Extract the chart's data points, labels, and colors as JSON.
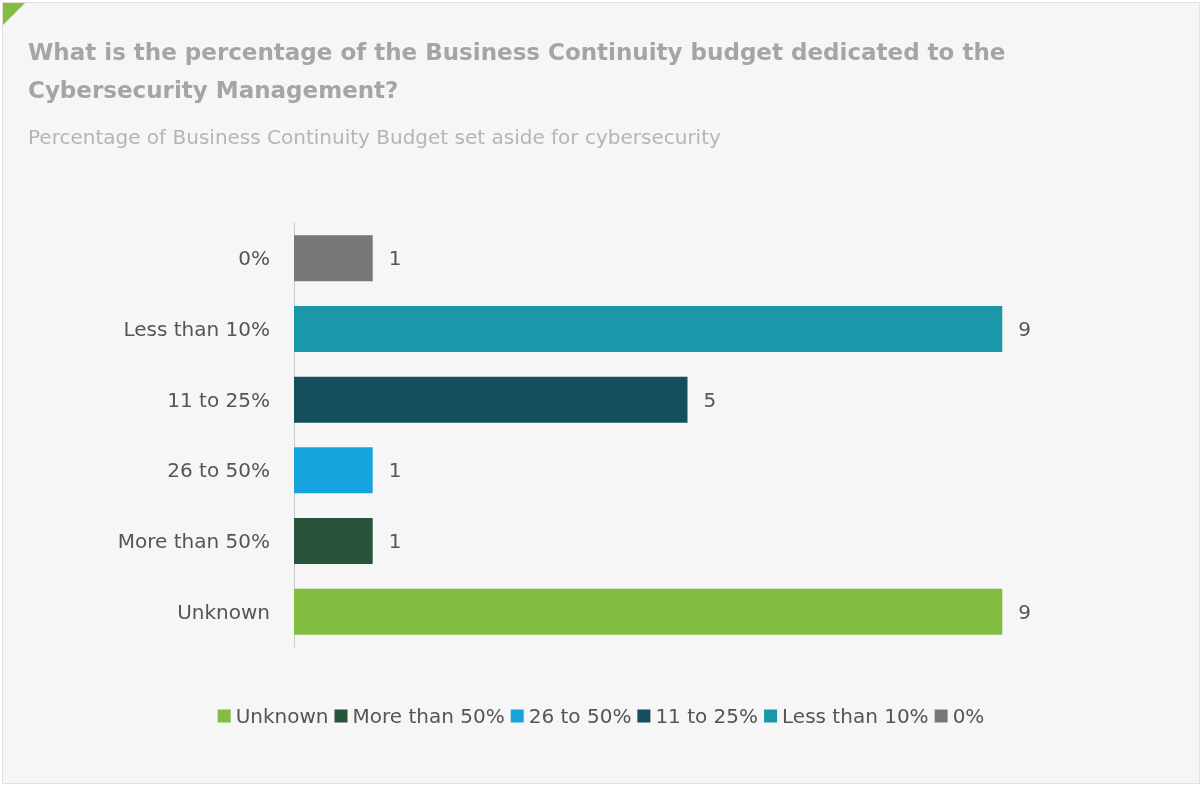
{
  "chart_data": {
    "type": "bar",
    "orientation": "horizontal",
    "title": "What is the percentage of the Business Continuity budget dedicated to the Cybersecurity Management?",
    "subtitle": "Percentage of Business Continuity Budget set aside for cybersecurity",
    "categories": [
      "0%",
      "Less than 10%",
      "11 to 25%",
      "26 to 50%",
      "More than 50%",
      "Unknown"
    ],
    "series": [
      {
        "name": "Unknown",
        "color": "#82bc41",
        "values": [
          null,
          null,
          null,
          null,
          null,
          9
        ]
      },
      {
        "name": "More than 50%",
        "color": "#27533a",
        "values": [
          null,
          null,
          null,
          null,
          1,
          null
        ]
      },
      {
        "name": "26 to 50%",
        "color": "#17a3dd",
        "values": [
          null,
          null,
          null,
          1,
          null,
          null
        ]
      },
      {
        "name": "11 to 25%",
        "color": "#134f5c",
        "values": [
          null,
          null,
          5,
          null,
          null,
          null
        ]
      },
      {
        "name": "Less than 10%",
        "color": "#1b97a9",
        "values": [
          null,
          9,
          null,
          null,
          null,
          null
        ]
      },
      {
        "name": "0%",
        "color": "#757778",
        "values": [
          1,
          null,
          null,
          null,
          null,
          null
        ]
      }
    ],
    "data_labels": true,
    "legend": "bottom"
  }
}
